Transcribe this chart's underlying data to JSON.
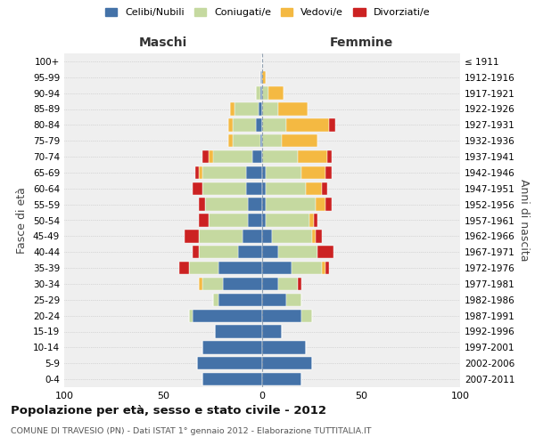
{
  "age_groups": [
    "0-4",
    "5-9",
    "10-14",
    "15-19",
    "20-24",
    "25-29",
    "30-34",
    "35-39",
    "40-44",
    "45-49",
    "50-54",
    "55-59",
    "60-64",
    "65-69",
    "70-74",
    "75-79",
    "80-84",
    "85-89",
    "90-94",
    "95-99",
    "100+"
  ],
  "birth_years": [
    "2007-2011",
    "2002-2006",
    "1997-2001",
    "1992-1996",
    "1987-1991",
    "1982-1986",
    "1977-1981",
    "1972-1976",
    "1967-1971",
    "1962-1966",
    "1957-1961",
    "1952-1956",
    "1947-1951",
    "1942-1946",
    "1937-1941",
    "1932-1936",
    "1927-1931",
    "1922-1926",
    "1917-1921",
    "1912-1916",
    "≤ 1911"
  ],
  "males": {
    "celibi": [
      30,
      33,
      30,
      24,
      35,
      22,
      20,
      22,
      12,
      10,
      7,
      7,
      8,
      8,
      5,
      1,
      3,
      2,
      1,
      1,
      0
    ],
    "coniugati": [
      0,
      0,
      0,
      0,
      2,
      3,
      10,
      15,
      20,
      22,
      20,
      22,
      22,
      22,
      20,
      14,
      12,
      12,
      2,
      0,
      0
    ],
    "vedovi": [
      0,
      0,
      0,
      0,
      0,
      0,
      2,
      0,
      0,
      0,
      0,
      0,
      0,
      2,
      2,
      2,
      2,
      2,
      0,
      0,
      0
    ],
    "divorziati": [
      0,
      0,
      0,
      0,
      0,
      0,
      0,
      5,
      3,
      7,
      5,
      3,
      5,
      2,
      3,
      0,
      0,
      0,
      0,
      0,
      0
    ]
  },
  "females": {
    "nubili": [
      20,
      25,
      22,
      10,
      20,
      12,
      8,
      15,
      8,
      5,
      2,
      2,
      2,
      2,
      0,
      0,
      0,
      0,
      0,
      0,
      0
    ],
    "coniugate": [
      0,
      0,
      0,
      0,
      5,
      8,
      10,
      15,
      20,
      20,
      22,
      25,
      20,
      18,
      18,
      10,
      12,
      8,
      3,
      0,
      0
    ],
    "vedove": [
      0,
      0,
      0,
      0,
      0,
      0,
      0,
      2,
      0,
      2,
      2,
      5,
      8,
      12,
      15,
      18,
      22,
      15,
      8,
      2,
      0
    ],
    "divorziate": [
      0,
      0,
      0,
      0,
      0,
      0,
      2,
      2,
      8,
      3,
      2,
      3,
      3,
      3,
      2,
      0,
      3,
      0,
      0,
      0,
      0
    ]
  },
  "colors": {
    "celibi": "#4472a8",
    "coniugati": "#c5d9a0",
    "vedovi": "#f4b942",
    "divorziati": "#cc2222"
  },
  "xlim": 100,
  "title": "Popolazione per età, sesso e stato civile - 2012",
  "subtitle": "COMUNE DI TRAVESIO (PN) - Dati ISTAT 1° gennaio 2012 - Elaborazione TUTTITALIA.IT",
  "ylabel_left": "Fasce di età",
  "ylabel_right": "Anni di nascita",
  "xlabel_left": "Maschi",
  "xlabel_right": "Femmine"
}
